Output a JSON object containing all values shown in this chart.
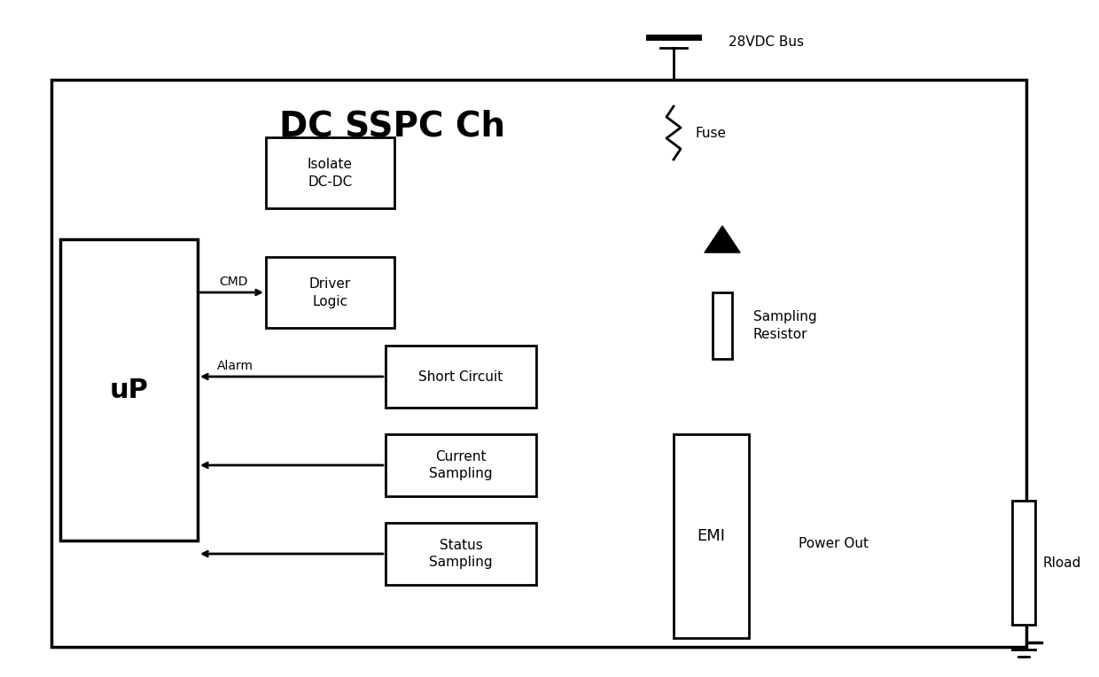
{
  "title": "DC SSPC Ch",
  "bg_color": "#ffffff",
  "lc": "#000000",
  "lw": 2.0,
  "lw_thick": 2.5,
  "fig_w": 12.4,
  "fig_h": 7.64,
  "dpi": 100,
  "labels": {
    "bus": "28VDC Bus",
    "fuse": "Fuse",
    "isolate_l1": "Isolate",
    "isolate_l2": "DC-DC",
    "driver_l1": "Driver",
    "driver_l2": "Logic",
    "short_circuit": "Short Circuit",
    "current_l1": "Current",
    "current_l2": "Sampling",
    "status_l1": "Status",
    "status_l2": "Sampling",
    "sampling_l1": "Sampling",
    "sampling_l2": "Resistor",
    "emi": "EMI",
    "rload": "Rload",
    "power_out": "Power Out",
    "up": "uP",
    "cmd": "CMD",
    "alarm": "Alarm"
  }
}
